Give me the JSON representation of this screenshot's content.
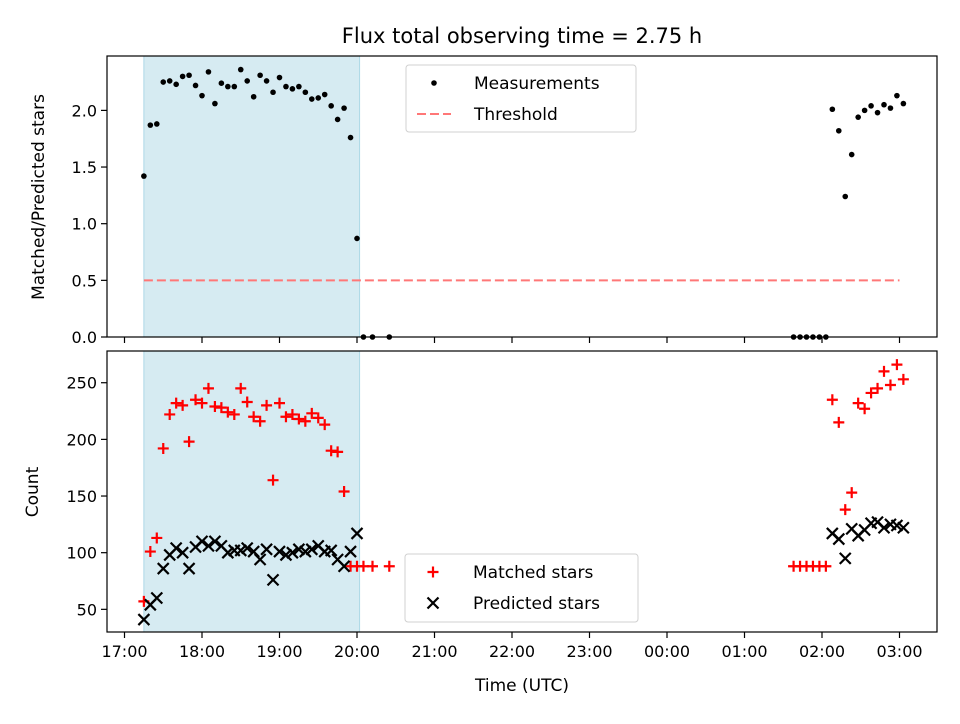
{
  "title": "Flux total observing time = 2.75 h",
  "xlabel": "Time (UTC)",
  "chart_data": [
    {
      "type": "scatter",
      "ylabel": "Matched/Predicted stars",
      "ylim": [
        0,
        2.48
      ],
      "yticks": [
        "0.0",
        "0.5",
        "1.0",
        "1.5",
        "2.0"
      ],
      "ytick_values": [
        0,
        0.5,
        1.0,
        1.5,
        2.0
      ],
      "legend_placement": "top-center",
      "shaded_span": {
        "start": "17:15",
        "end": "20:02",
        "color": "#add8e6"
      },
      "series": [
        {
          "name": "Measurements",
          "marker": "dot",
          "color": "#000000",
          "x": [
            "17:15",
            "17:20",
            "17:25",
            "17:30",
            "17:35",
            "17:40",
            "17:45",
            "17:50",
            "17:55",
            "18:00",
            "18:05",
            "18:10",
            "18:15",
            "18:20",
            "18:25",
            "18:30",
            "18:35",
            "18:40",
            "18:45",
            "18:50",
            "18:55",
            "19:00",
            "19:05",
            "19:10",
            "19:15",
            "19:20",
            "19:25",
            "19:30",
            "19:35",
            "19:40",
            "19:45",
            "19:50",
            "19:55",
            "20:00",
            "20:05",
            "20:12",
            "20:25",
            "01:38",
            "01:43",
            "01:48",
            "01:53",
            "01:58",
            "02:03",
            "02:08",
            "02:13",
            "02:18",
            "02:23",
            "02:28",
            "02:33",
            "02:38",
            "02:43",
            "02:48",
            "02:53",
            "02:58",
            "03:03"
          ],
          "y": [
            1.42,
            1.87,
            1.88,
            2.25,
            2.26,
            2.23,
            2.3,
            2.31,
            2.22,
            2.13,
            2.34,
            2.06,
            2.24,
            2.21,
            2.21,
            2.36,
            2.26,
            2.12,
            2.31,
            2.26,
            2.16,
            2.29,
            2.21,
            2.19,
            2.21,
            2.16,
            2.1,
            2.11,
            2.14,
            2.04,
            1.92,
            2.02,
            1.76,
            0.87,
            0.0,
            0.0,
            0.0,
            0.0,
            0.0,
            0.0,
            0.0,
            0.0,
            0.0,
            2.01,
            1.82,
            1.24,
            1.61,
            1.94,
            2.0,
            2.04,
            1.98,
            2.05,
            2.02,
            2.13,
            2.06
          ]
        },
        {
          "name": "Threshold",
          "marker": "dashed-line",
          "color": "#ff7777",
          "x": [
            "17:15",
            "03:00"
          ],
          "y": [
            0.5,
            0.5
          ]
        }
      ]
    },
    {
      "type": "scatter",
      "ylabel": "Count",
      "ylim": [
        30,
        278
      ],
      "yticks": [
        "50",
        "100",
        "150",
        "200",
        "250"
      ],
      "ytick_values": [
        50,
        100,
        150,
        200,
        250
      ],
      "legend_placement": "bottom-center",
      "shaded_span": {
        "start": "17:15",
        "end": "20:02",
        "color": "#add8e6"
      },
      "series": [
        {
          "name": "Matched stars",
          "marker": "plus",
          "color": "#ff0000",
          "x": [
            "17:15",
            "17:20",
            "17:25",
            "17:30",
            "17:35",
            "17:40",
            "17:45",
            "17:50",
            "17:55",
            "18:00",
            "18:05",
            "18:10",
            "18:15",
            "18:20",
            "18:25",
            "18:30",
            "18:35",
            "18:40",
            "18:45",
            "18:50",
            "18:55",
            "19:00",
            "19:05",
            "19:10",
            "19:15",
            "19:20",
            "19:25",
            "19:30",
            "19:35",
            "19:40",
            "19:45",
            "19:50",
            "19:55",
            "20:00",
            "20:05",
            "20:12",
            "20:25",
            "01:38",
            "01:43",
            "01:48",
            "01:53",
            "01:58",
            "02:03",
            "02:08",
            "02:13",
            "02:18",
            "02:23",
            "02:28",
            "02:33",
            "02:38",
            "02:43",
            "02:48",
            "02:53",
            "02:58",
            "03:03"
          ],
          "y": [
            57,
            101,
            113,
            192,
            222,
            232,
            230,
            198,
            235,
            232,
            245,
            229,
            228,
            224,
            222,
            245,
            233,
            220,
            216,
            230,
            164,
            232,
            220,
            222,
            218,
            216,
            223,
            219,
            213,
            190,
            189,
            154,
            88,
            88,
            88,
            88,
            88,
            88,
            88,
            88,
            88,
            88,
            88,
            235,
            215,
            138,
            153,
            232,
            227,
            241,
            245,
            260,
            248,
            266,
            253
          ]
        },
        {
          "name": "Predicted stars",
          "marker": "x",
          "color": "#000000",
          "x": [
            "17:15",
            "17:20",
            "17:25",
            "17:30",
            "17:35",
            "17:40",
            "17:45",
            "17:50",
            "17:55",
            "18:00",
            "18:05",
            "18:10",
            "18:15",
            "18:20",
            "18:25",
            "18:30",
            "18:35",
            "18:40",
            "18:45",
            "18:50",
            "18:55",
            "19:00",
            "19:05",
            "19:10",
            "19:15",
            "19:20",
            "19:25",
            "19:30",
            "19:35",
            "19:40",
            "19:45",
            "19:50",
            "19:55",
            "20:00",
            "02:08",
            "02:13",
            "02:18",
            "02:23",
            "02:28",
            "02:33",
            "02:38",
            "02:43",
            "02:48",
            "02:53",
            "02:58",
            "03:03"
          ],
          "y": [
            41,
            54,
            60,
            86,
            98,
            104,
            100,
            86,
            105,
            110,
            106,
            110,
            106,
            100,
            102,
            102,
            104,
            101,
            94,
            103,
            76,
            101,
            98,
            100,
            103,
            101,
            103,
            106,
            101,
            102,
            94,
            88,
            101,
            117,
            117,
            112,
            95,
            121,
            115,
            120,
            126,
            127,
            122,
            125,
            124,
            122
          ]
        }
      ]
    }
  ],
  "xaxis": {
    "ticks": [
      "17:00",
      "18:00",
      "19:00",
      "20:00",
      "21:00",
      "22:00",
      "23:00",
      "00:00",
      "01:00",
      "02:00",
      "03:00"
    ]
  }
}
